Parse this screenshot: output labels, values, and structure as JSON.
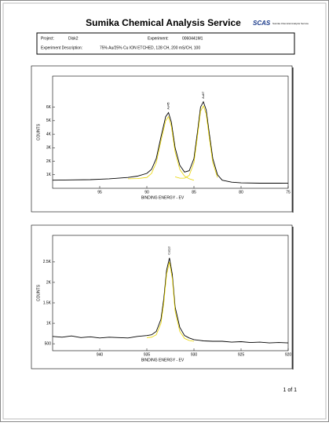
{
  "header": {
    "title": "Sumika Chemical Analysis Service",
    "logo": "SCAS",
    "logo_text": "Sumika Chemical Analysis Service"
  },
  "info": {
    "project_label": "Project:",
    "project": "Disk2",
    "experiment_label": "Experiment:",
    "experiment": "0060441M1",
    "description_label": "Experiment Description:",
    "description": "75% Au/25% Cu ION ETCHED, 128 CH, 200 mS/CH, 100"
  },
  "chart_data": [
    {
      "type": "line",
      "x_label": "BINDING ENERGY - EV",
      "y_label": "COUNTS",
      "annotations": [
        {
          "text": "Au4f5",
          "x": 87.7
        },
        {
          "text": "Au4f7",
          "x": 84
        }
      ],
      "x": [
        100,
        98,
        96,
        94,
        92,
        91,
        90,
        89.5,
        89,
        88.5,
        88,
        87.7,
        87.4,
        87,
        86.5,
        86,
        85.5,
        85,
        84.6,
        84.3,
        84,
        83.7,
        83.4,
        83,
        82.5,
        82,
        81,
        80,
        78,
        76,
        75
      ],
      "series": [
        {
          "color": "#000000",
          "values": [
            600,
            620,
            640,
            700,
            800,
            900,
            1100,
            1400,
            2200,
            3800,
            5300,
            5600,
            4900,
            3000,
            1700,
            1200,
            1300,
            2200,
            4300,
            6000,
            6400,
            5800,
            4200,
            2200,
            1000,
            600,
            450,
            400,
            380,
            380,
            370
          ]
        },
        {
          "color": "#e8d400",
          "values": [
            null,
            null,
            null,
            null,
            700,
            720,
            800,
            1100,
            1900,
            3500,
            5000,
            5300,
            4600,
            2700,
            1400,
            900,
            700,
            600,
            null,
            null,
            null,
            null,
            null,
            null,
            null,
            null,
            null,
            null,
            null,
            null,
            null
          ]
        },
        {
          "color": "#e8d400",
          "values": [
            null,
            null,
            null,
            null,
            null,
            null,
            null,
            null,
            null,
            null,
            null,
            null,
            null,
            850,
            750,
            750,
            950,
            1900,
            4000,
            5700,
            6100,
            5500,
            3900,
            1900,
            800,
            null,
            null,
            null,
            null,
            null,
            null
          ]
        }
      ],
      "xlim": [
        100,
        75
      ],
      "xticks": [
        95,
        90,
        85,
        80,
        75
      ],
      "ylim": [
        0,
        8300
      ],
      "yticks": [
        {
          "value": 1000,
          "label": "1K"
        },
        {
          "value": 2000,
          "label": "2K"
        },
        {
          "value": 3000,
          "label": "3K"
        },
        {
          "value": 4000,
          "label": "4K"
        },
        {
          "value": 5000,
          "label": "5K"
        },
        {
          "value": 6000,
          "label": "6K"
        }
      ]
    },
    {
      "type": "line",
      "x_label": "BINDING ENERGY - EV",
      "y_label": "COUNTS",
      "annotations": [
        {
          "text": "Cu2p3",
          "x": 932.6
        }
      ],
      "x": [
        945,
        944,
        943,
        942,
        941,
        940,
        939,
        938,
        937,
        936,
        935,
        934.5,
        934,
        933.5,
        933.2,
        932.9,
        932.6,
        932.3,
        932,
        931.5,
        931,
        930.5,
        930,
        929,
        928,
        927,
        926,
        925,
        924,
        923,
        922,
        921,
        920
      ],
      "series": [
        {
          "color": "#000000",
          "values": [
            680,
            660,
            690,
            650,
            670,
            640,
            660,
            650,
            640,
            680,
            700,
            720,
            800,
            1100,
            1600,
            2300,
            2600,
            2200,
            1400,
            900,
            700,
            640,
            600,
            570,
            560,
            560,
            540,
            550,
            530,
            540,
            520,
            530,
            520
          ]
        },
        {
          "color": "#e8d400",
          "values": [
            null,
            null,
            null,
            null,
            null,
            null,
            null,
            null,
            null,
            null,
            650,
            660,
            720,
            1000,
            1500,
            2200,
            2500,
            2100,
            1300,
            800,
            630,
            580,
            560,
            null,
            null,
            null,
            null,
            null,
            null,
            null,
            null,
            null,
            null
          ]
        }
      ],
      "xlim": [
        945,
        920
      ],
      "xticks": [
        940,
        935,
        930,
        925,
        920
      ],
      "ylim": [
        330,
        3150
      ],
      "yticks": [
        {
          "value": 500,
          "label": "500"
        },
        {
          "value": 1000,
          "label": "1K"
        },
        {
          "value": 1500,
          "label": "1.5K"
        },
        {
          "value": 2000,
          "label": "2K"
        },
        {
          "value": 2500,
          "label": "2.5K"
        }
      ]
    }
  ],
  "footer": {
    "page": "1 of 1"
  }
}
